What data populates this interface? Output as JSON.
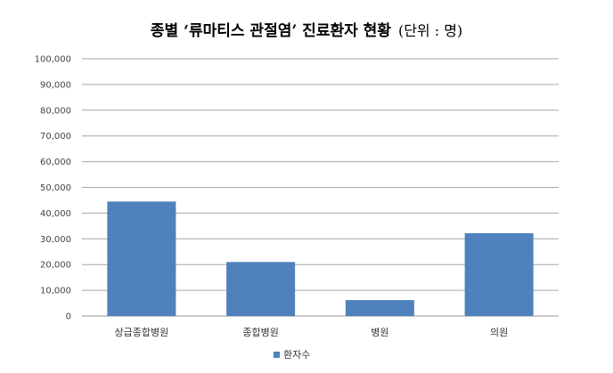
{
  "chart_data": {
    "type": "bar",
    "title": "종별 ‘류마티스 관절염’ 진료환자 현황",
    "unit_note": "(단위 : 명)",
    "categories": [
      "상급종합병원",
      "종합병원",
      "병원",
      "의원"
    ],
    "series": [
      {
        "name": "환자수",
        "values": [
          44500,
          21000,
          6200,
          32200
        ],
        "color": "#4f81bd"
      }
    ],
    "ylim": [
      0,
      100000
    ],
    "yticks": [
      0,
      10000,
      20000,
      30000,
      40000,
      50000,
      60000,
      70000,
      80000,
      90000,
      100000
    ],
    "ytick_labels": [
      "0",
      "10,000",
      "20,000",
      "30,000",
      "40,000",
      "50,000",
      "60,000",
      "70,000",
      "80,000",
      "90,000",
      "100,000"
    ],
    "grid": true,
    "legend_position": "bottom"
  }
}
